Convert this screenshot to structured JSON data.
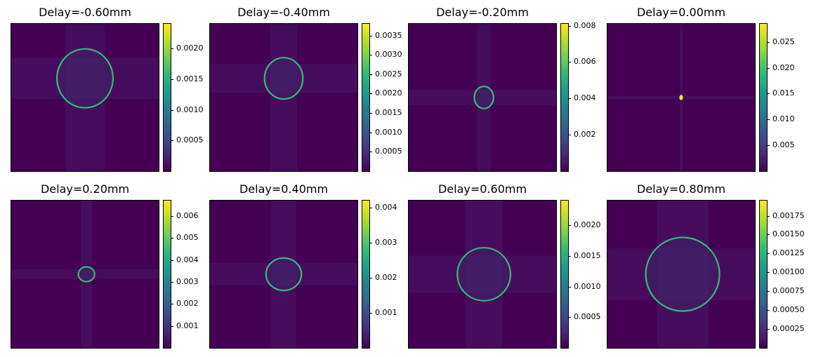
{
  "figure": {
    "colormap": "viridis",
    "colors": {
      "background": "#440154",
      "ring": "#35b779",
      "ring_peak": "#fde725",
      "streak": "#4a1d6b"
    }
  },
  "chart_data": [
    {
      "type": "heatmap",
      "title": "Delay=-0.60mm",
      "ring": {
        "cx": 0.5,
        "cy": 0.37,
        "rx": 0.19,
        "ry": 0.2
      },
      "colorbar": {
        "range": [
          0,
          0.0024
        ],
        "ticks": [
          0.0005,
          0.001,
          0.0015,
          0.002
        ],
        "tick_labels": [
          "0.0005",
          "0.0010",
          "0.0015",
          "0.0020"
        ]
      }
    },
    {
      "type": "heatmap",
      "title": "Delay=-0.40mm",
      "ring": {
        "cx": 0.5,
        "cy": 0.37,
        "rx": 0.13,
        "ry": 0.14
      },
      "colorbar": {
        "range": [
          0,
          0.0038
        ],
        "ticks": [
          0.0005,
          0.001,
          0.0015,
          0.002,
          0.0025,
          0.003,
          0.0035
        ],
        "tick_labels": [
          "0.0005",
          "0.0010",
          "0.0015",
          "0.0020",
          "0.0025",
          "0.0030",
          "0.0035"
        ]
      }
    },
    {
      "type": "heatmap",
      "title": "Delay=-0.20mm",
      "ring": {
        "cx": 0.51,
        "cy": 0.5,
        "rx": 0.065,
        "ry": 0.075
      },
      "colorbar": {
        "range": [
          0,
          0.0081
        ],
        "ticks": [
          0.002,
          0.004,
          0.006,
          0.008
        ],
        "tick_labels": [
          "0.002",
          "0.004",
          "0.006",
          "0.008"
        ]
      }
    },
    {
      "type": "heatmap",
      "title": "Delay=0.00mm",
      "ring": {
        "cx": 0.5,
        "cy": 0.5,
        "rx": 0.006,
        "ry": 0.012
      },
      "colorbar": {
        "range": [
          0,
          0.0285
        ],
        "ticks": [
          0.005,
          0.01,
          0.015,
          0.02,
          0.025
        ],
        "tick_labels": [
          "0.005",
          "0.010",
          "0.015",
          "0.020",
          "0.025"
        ]
      }
    },
    {
      "type": "heatmap",
      "title": "Delay=0.20mm",
      "ring": {
        "cx": 0.51,
        "cy": 0.5,
        "rx": 0.055,
        "ry": 0.05
      },
      "colorbar": {
        "range": [
          0,
          0.0067
        ],
        "ticks": [
          0.001,
          0.002,
          0.003,
          0.004,
          0.005,
          0.006
        ],
        "tick_labels": [
          "0.001",
          "0.002",
          "0.003",
          "0.004",
          "0.005",
          "0.006"
        ]
      }
    },
    {
      "type": "heatmap",
      "title": "Delay=0.40mm",
      "ring": {
        "cx": 0.5,
        "cy": 0.5,
        "rx": 0.12,
        "ry": 0.11
      },
      "colorbar": {
        "range": [
          0,
          0.0042
        ],
        "ticks": [
          0.001,
          0.002,
          0.003,
          0.004
        ],
        "tick_labels": [
          "0.001",
          "0.002",
          "0.003",
          "0.004"
        ]
      }
    },
    {
      "type": "heatmap",
      "title": "Delay=0.60mm",
      "ring": {
        "cx": 0.51,
        "cy": 0.5,
        "rx": 0.18,
        "ry": 0.18
      },
      "colorbar": {
        "range": [
          0,
          0.0024
        ],
        "ticks": [
          0.0005,
          0.001,
          0.0015,
          0.002
        ],
        "tick_labels": [
          "0.0005",
          "0.0010",
          "0.0015",
          "0.0020"
        ]
      }
    },
    {
      "type": "heatmap",
      "title": "Delay=0.80mm",
      "ring": {
        "cx": 0.51,
        "cy": 0.5,
        "rx": 0.25,
        "ry": 0.25
      },
      "colorbar": {
        "range": [
          0,
          0.00195
        ],
        "ticks": [
          0.00025,
          0.0005,
          0.00075,
          0.001,
          0.00125,
          0.0015,
          0.00175
        ],
        "tick_labels": [
          "0.00025",
          "0.00050",
          "0.00075",
          "0.00100",
          "0.00125",
          "0.00150",
          "0.00175"
        ]
      }
    }
  ]
}
